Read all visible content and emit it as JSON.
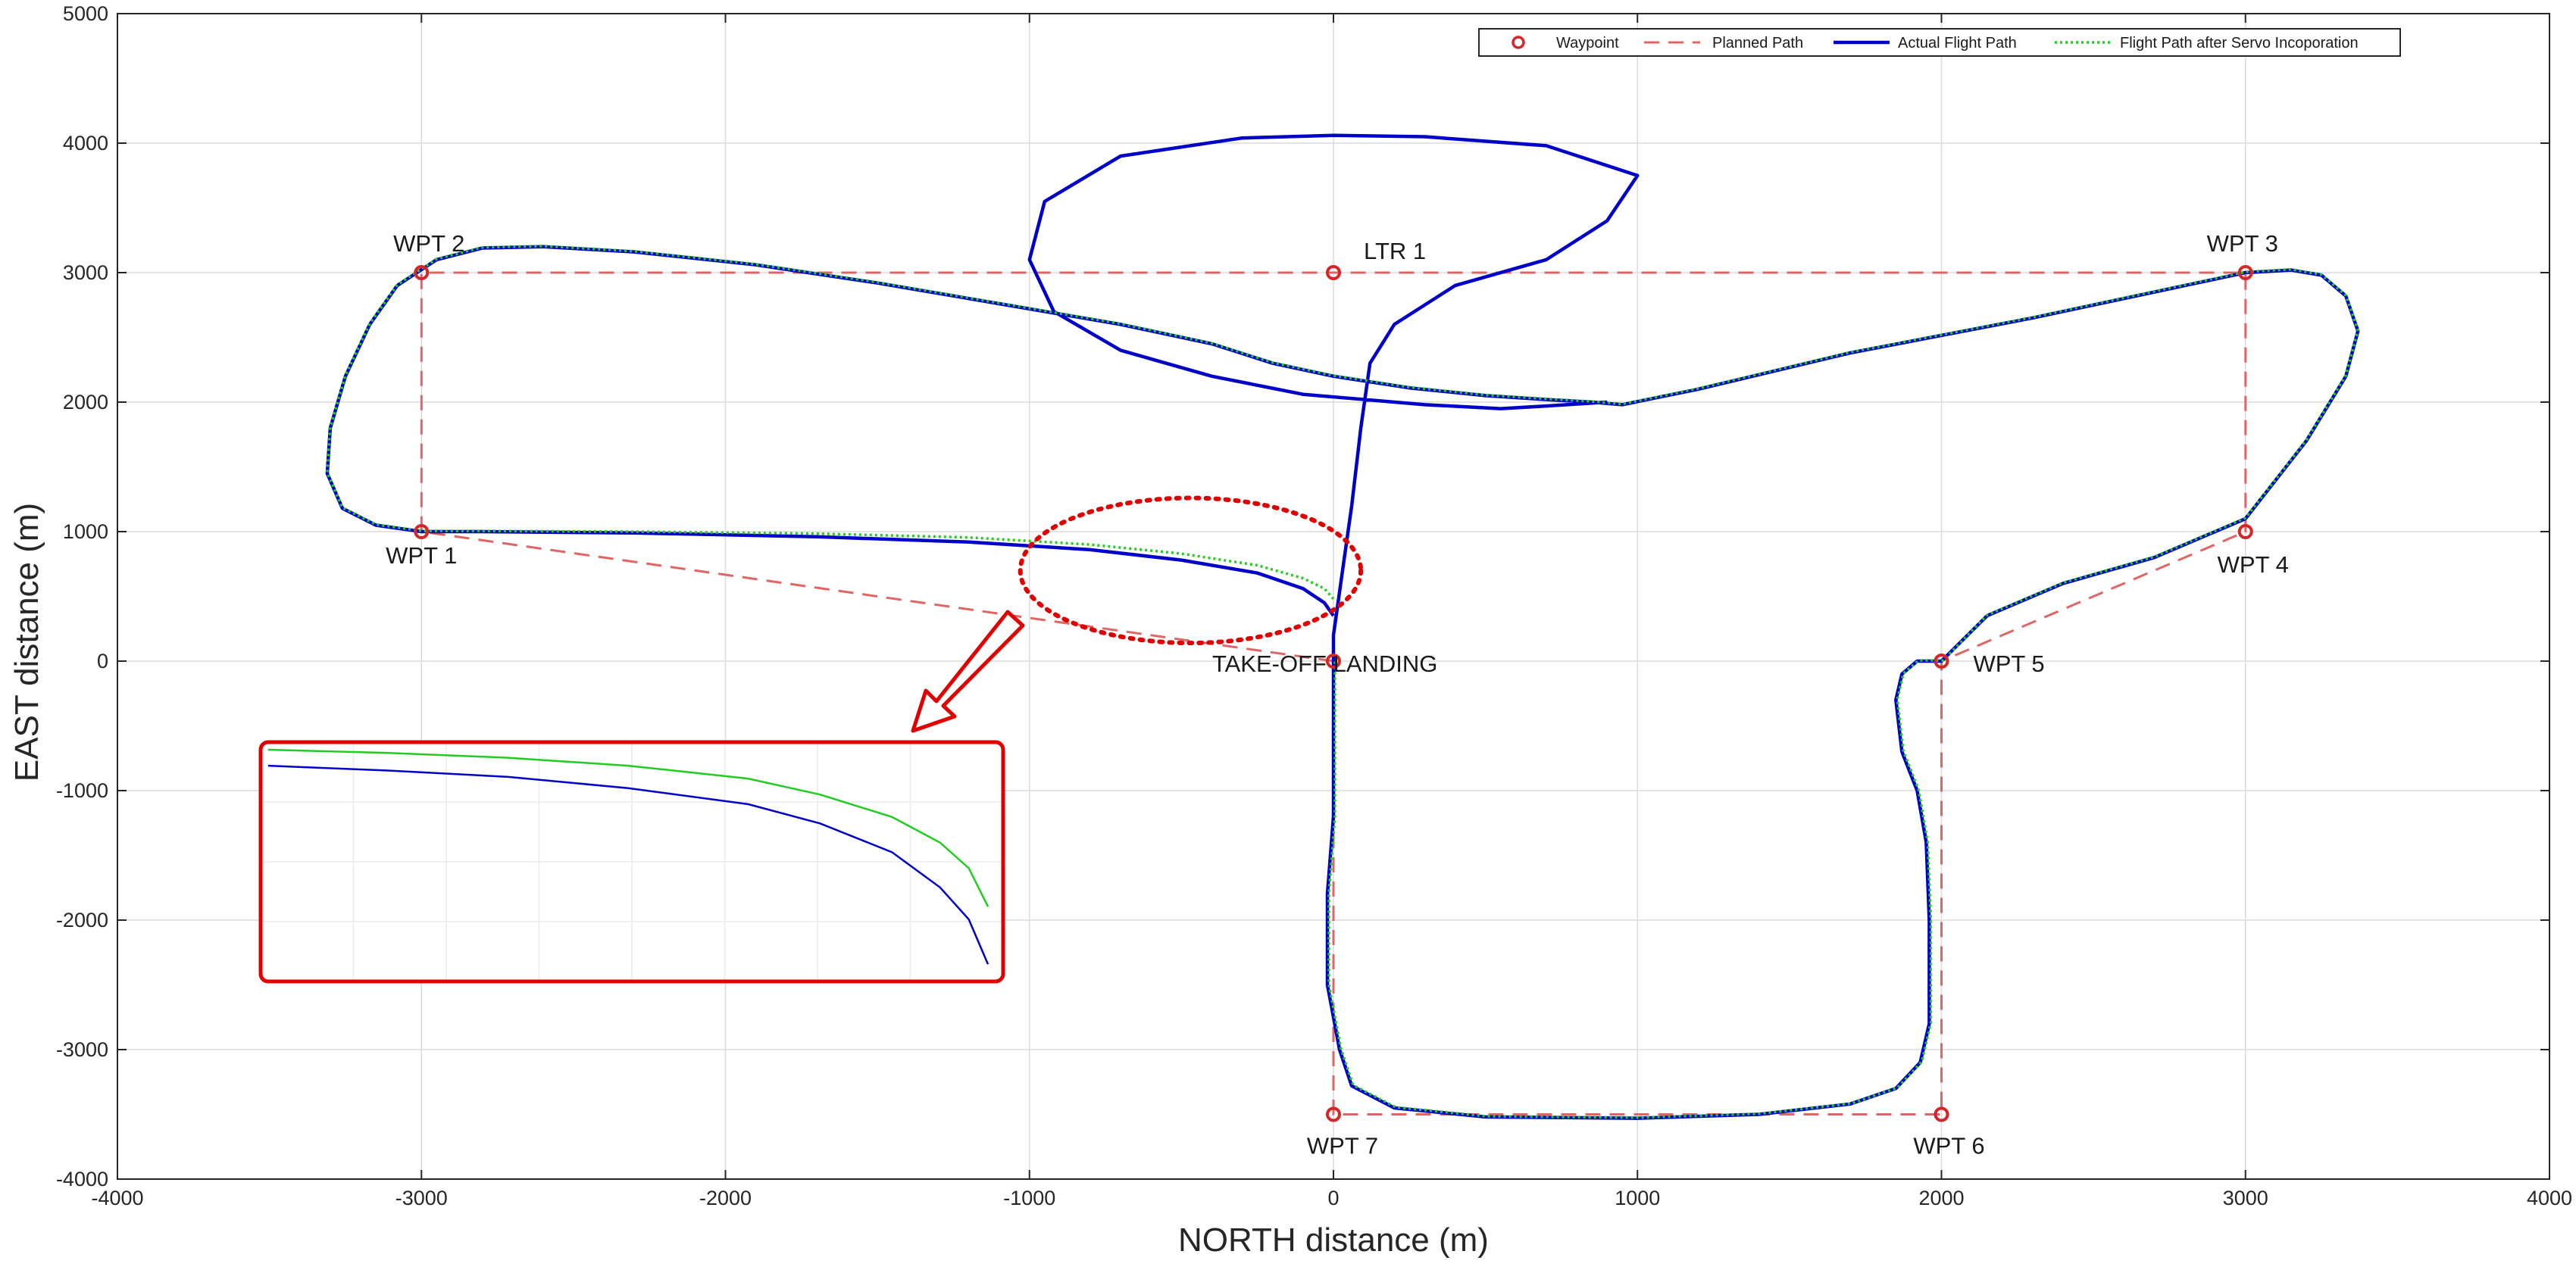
{
  "chart_data": {
    "type": "line",
    "xlabel": "NORTH distance (m)",
    "ylabel": "EAST distance (m)",
    "xlim": [
      -4000,
      4000
    ],
    "ylim": [
      -4000,
      5000
    ],
    "xticks": [
      -4000,
      -3000,
      -2000,
      -1000,
      0,
      1000,
      2000,
      3000,
      4000
    ],
    "yticks": [
      -4000,
      -3000,
      -2000,
      -1000,
      0,
      1000,
      2000,
      3000,
      4000,
      5000
    ],
    "grid": true,
    "legend_position": "top-right",
    "colors": {
      "waypoint": "#d62728",
      "planned": "#e06666",
      "actual": "#0000c8",
      "servo": "#22cc22",
      "highlight": "#e00000"
    },
    "legend": [
      {
        "key": "waypoint",
        "label": "Waypoint"
      },
      {
        "key": "planned",
        "label": "Planned Path"
      },
      {
        "key": "actual",
        "label": "Actual Flight Path"
      },
      {
        "key": "servo",
        "label": "Flight Path after Servo Incoporation"
      }
    ],
    "waypoints": [
      {
        "label": "WPT 1",
        "x": -3000,
        "y": 1000,
        "anchor": "middle",
        "dx": 0,
        "dy": 42
      },
      {
        "label": "WPT 2",
        "x": -3000,
        "y": 3000,
        "anchor": "middle",
        "dx": 10,
        "dy": -28
      },
      {
        "label": "WPT 3",
        "x": 3000,
        "y": 3000,
        "anchor": "middle",
        "dx": -4,
        "dy": -28
      },
      {
        "label": "WPT 4",
        "x": 3000,
        "y": 1000,
        "anchor": "middle",
        "dx": 10,
        "dy": 54
      },
      {
        "label": "WPT 5",
        "x": 2000,
        "y": 0,
        "anchor": "start",
        "dx": 42,
        "dy": 14
      },
      {
        "label": "WPT 6",
        "x": 2000,
        "y": -3500,
        "anchor": "middle",
        "dx": 10,
        "dy": 52
      },
      {
        "label": "WPT 7",
        "x": 0,
        "y": -3500,
        "anchor": "middle",
        "dx": 12,
        "dy": 52
      },
      {
        "label": "LTR 1",
        "x": 0,
        "y": 3000,
        "anchor": "start",
        "dx": 40,
        "dy": -18
      },
      {
        "label": "TAKE-OFF LANDING",
        "x": 0,
        "y": 0,
        "anchor": "start",
        "dx": -160,
        "dy": 14
      }
    ],
    "series": [
      {
        "key": "planned",
        "points": [
          [
            0,
            0
          ],
          [
            -3000,
            1000
          ],
          [
            -3000,
            3000
          ],
          [
            3000,
            3000
          ],
          [
            3000,
            1000
          ],
          [
            2000,
            0
          ],
          [
            2000,
            -3500
          ],
          [
            0,
            -3500
          ],
          [
            0,
            0
          ]
        ]
      },
      {
        "key": "actual",
        "points": [
          [
            0,
            350
          ],
          [
            -30,
            450
          ],
          [
            -100,
            560
          ],
          [
            -250,
            680
          ],
          [
            -500,
            780
          ],
          [
            -800,
            860
          ],
          [
            -1200,
            920
          ],
          [
            -1700,
            960
          ],
          [
            -2300,
            990
          ],
          [
            -2800,
            1000
          ],
          [
            -3000,
            1000
          ],
          [
            -3150,
            1050
          ],
          [
            -3260,
            1180
          ],
          [
            -3310,
            1450
          ],
          [
            -3300,
            1800
          ],
          [
            -3250,
            2200
          ],
          [
            -3170,
            2600
          ],
          [
            -3080,
            2900
          ],
          [
            -2950,
            3100
          ],
          [
            -2800,
            3190
          ],
          [
            -2600,
            3200
          ],
          [
            -2300,
            3160
          ],
          [
            -1900,
            3060
          ],
          [
            -1500,
            2920
          ],
          [
            -1100,
            2760
          ],
          [
            -700,
            2600
          ],
          [
            -400,
            2450
          ],
          [
            -200,
            2300
          ],
          [
            0,
            2200
          ],
          [
            250,
            2110
          ],
          [
            500,
            2050
          ],
          [
            700,
            2020
          ],
          [
            850,
            2000
          ],
          [
            950,
            1980
          ],
          [
            1200,
            2100
          ],
          [
            1700,
            2380
          ],
          [
            2300,
            2650
          ],
          [
            2800,
            2900
          ],
          [
            3000,
            3000
          ],
          [
            3150,
            3020
          ],
          [
            3250,
            2980
          ],
          [
            3330,
            2820
          ],
          [
            3370,
            2550
          ],
          [
            3330,
            2200
          ],
          [
            3200,
            1700
          ],
          [
            3000,
            1100
          ],
          [
            2700,
            800
          ],
          [
            2400,
            600
          ],
          [
            2150,
            350
          ],
          [
            2000,
            0
          ],
          [
            1920,
            0
          ],
          [
            1870,
            -100
          ],
          [
            1850,
            -300
          ],
          [
            1870,
            -700
          ],
          [
            1920,
            -1000
          ],
          [
            1950,
            -1400
          ],
          [
            1960,
            -2000
          ],
          [
            1960,
            -2800
          ],
          [
            1930,
            -3100
          ],
          [
            1850,
            -3300
          ],
          [
            1700,
            -3420
          ],
          [
            1400,
            -3500
          ],
          [
            1000,
            -3530
          ],
          [
            500,
            -3520
          ],
          [
            200,
            -3450
          ],
          [
            60,
            -3280
          ],
          [
            20,
            -3000
          ],
          [
            -20,
            -2500
          ],
          [
            -20,
            -1800
          ],
          [
            0,
            -1200
          ],
          [
            0,
            -500
          ],
          [
            0,
            0
          ],
          [
            0,
            200
          ],
          [
            30,
            700
          ],
          [
            60,
            1200
          ],
          [
            90,
            1800
          ],
          [
            120,
            2300
          ],
          [
            200,
            2600
          ],
          [
            400,
            2900
          ],
          [
            700,
            3100
          ],
          [
            900,
            3400
          ],
          [
            1000,
            3750
          ],
          [
            700,
            3980
          ],
          [
            300,
            4050
          ],
          [
            0,
            4060
          ],
          [
            -300,
            4040
          ],
          [
            -700,
            3900
          ],
          [
            -950,
            3550
          ],
          [
            -1000,
            3100
          ],
          [
            -920,
            2700
          ],
          [
            -700,
            2400
          ],
          [
            -400,
            2200
          ],
          [
            -100,
            2060
          ],
          [
            300,
            1980
          ],
          [
            550,
            1950
          ],
          [
            700,
            1970
          ],
          [
            900,
            2000
          ]
        ]
      },
      {
        "key": "servo",
        "points": [
          [
            0,
            480
          ],
          [
            -30,
            560
          ],
          [
            -100,
            640
          ],
          [
            -250,
            740
          ],
          [
            -500,
            830
          ],
          [
            -800,
            900
          ],
          [
            -1200,
            955
          ],
          [
            -1700,
            985
          ],
          [
            -2300,
            1000
          ],
          [
            -2800,
            1005
          ],
          [
            -3000,
            1005
          ],
          [
            -3150,
            1055
          ],
          [
            -3260,
            1185
          ],
          [
            -3310,
            1455
          ],
          [
            -3300,
            1805
          ],
          [
            -3250,
            2205
          ],
          [
            -3170,
            2605
          ],
          [
            -3080,
            2905
          ],
          [
            -2950,
            3105
          ],
          [
            -2800,
            3195
          ],
          [
            -2600,
            3205
          ],
          [
            -2300,
            3165
          ],
          [
            -1900,
            3065
          ],
          [
            -1500,
            2925
          ],
          [
            -1100,
            2765
          ],
          [
            -700,
            2605
          ],
          [
            -400,
            2455
          ],
          [
            -200,
            2305
          ],
          [
            0,
            2205
          ],
          [
            250,
            2115
          ],
          [
            500,
            2055
          ],
          [
            700,
            2025
          ],
          [
            850,
            2005
          ],
          [
            950,
            1985
          ],
          [
            1200,
            2105
          ],
          [
            1700,
            2385
          ],
          [
            2300,
            2655
          ],
          [
            2800,
            2905
          ],
          [
            3000,
            3005
          ],
          [
            3150,
            3025
          ],
          [
            3250,
            2985
          ],
          [
            3330,
            2825
          ],
          [
            3370,
            2555
          ],
          [
            3330,
            2205
          ],
          [
            3200,
            1705
          ],
          [
            3000,
            1105
          ],
          [
            2700,
            805
          ],
          [
            2400,
            605
          ],
          [
            2150,
            355
          ],
          [
            2005,
            5
          ],
          [
            1925,
            5
          ],
          [
            1875,
            -95
          ],
          [
            1855,
            -295
          ],
          [
            1875,
            -695
          ],
          [
            1925,
            -995
          ],
          [
            1955,
            -1395
          ],
          [
            1965,
            -1995
          ],
          [
            1965,
            -2795
          ],
          [
            1935,
            -3095
          ],
          [
            1855,
            -3295
          ],
          [
            1705,
            -3415
          ],
          [
            1405,
            -3495
          ],
          [
            1005,
            -3525
          ],
          [
            505,
            -3515
          ],
          [
            205,
            -3445
          ],
          [
            65,
            -3275
          ],
          [
            25,
            -2995
          ],
          [
            -15,
            -2495
          ],
          [
            -15,
            -1795
          ],
          [
            5,
            -1195
          ],
          [
            5,
            -495
          ],
          [
            5,
            5
          ]
        ]
      }
    ],
    "callout": {
      "ellipse_center": [
        -470,
        700
      ],
      "ellipse_radius": [
        560,
        560
      ]
    },
    "inset": {
      "xlim": [
        -3000,
        0
      ],
      "ylim": [
        350,
        1050
      ],
      "series": [
        {
          "key": "actual",
          "points": [
            [
              -3000,
              1000
            ],
            [
              -2500,
              985
            ],
            [
              -2000,
              965
            ],
            [
              -1500,
              930
            ],
            [
              -1000,
              880
            ],
            [
              -700,
              820
            ],
            [
              -400,
              730
            ],
            [
              -200,
              620
            ],
            [
              -80,
              520
            ],
            [
              0,
              380
            ]
          ]
        },
        {
          "key": "servo",
          "points": [
            [
              -3000,
              1050
            ],
            [
              -2500,
              1040
            ],
            [
              -2000,
              1025
            ],
            [
              -1500,
              1000
            ],
            [
              -1000,
              960
            ],
            [
              -700,
              910
            ],
            [
              -400,
              840
            ],
            [
              -200,
              760
            ],
            [
              -80,
              680
            ],
            [
              0,
              560
            ]
          ]
        }
      ]
    }
  }
}
